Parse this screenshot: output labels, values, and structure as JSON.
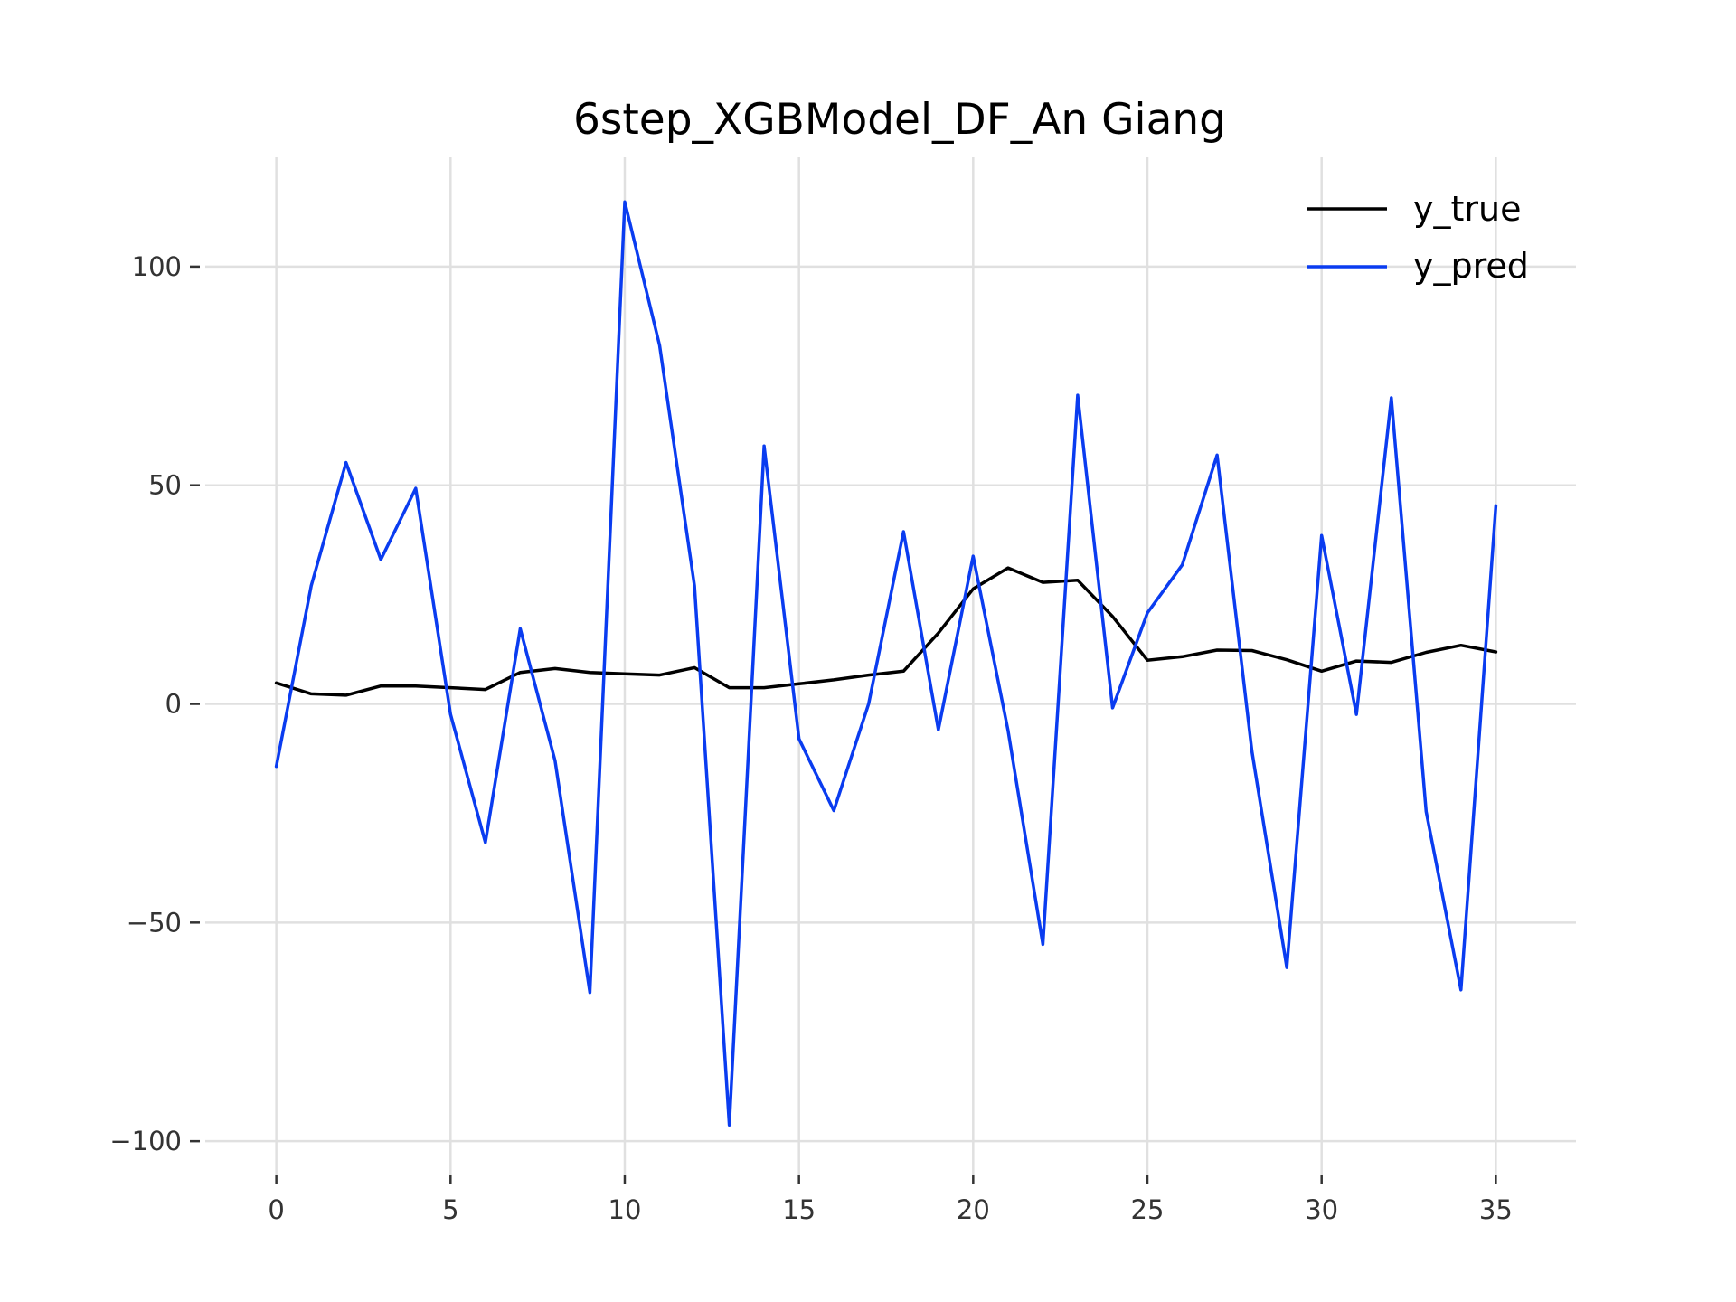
{
  "chart_data": {
    "type": "line",
    "title": "6step_XGBModel_DF_An Giang",
    "xlabel": "",
    "ylabel": "",
    "xlim": [
      -2.3,
      37.3
    ],
    "ylim": [
      -107,
      125
    ],
    "grid": true,
    "legend_position": "top-right",
    "x_ticks": [
      0,
      5,
      10,
      15,
      20,
      25,
      30,
      35
    ],
    "y_ticks": [
      -100,
      -50,
      0,
      50,
      100
    ],
    "x_tick_labels": [
      "0",
      "5",
      "10",
      "15",
      "20",
      "25",
      "30",
      "35"
    ],
    "y_tick_labels": [
      "−100",
      "−50",
      "0",
      "50",
      "100"
    ],
    "x": [
      0,
      1,
      2,
      3,
      4,
      5,
      6,
      7,
      8,
      9,
      10,
      11,
      12,
      13,
      14,
      15,
      16,
      17,
      18,
      19,
      20,
      21,
      22,
      23,
      24,
      25,
      26,
      27,
      28,
      29,
      30,
      31,
      32,
      33,
      34,
      35
    ],
    "series": [
      {
        "name": "y_true",
        "color": "#000000",
        "values": [
          4.8,
          2.3,
          2.0,
          4.1,
          4.1,
          3.7,
          3.3,
          7.2,
          8.1,
          7.2,
          6.9,
          6.6,
          8.3,
          3.7,
          3.7,
          4.6,
          5.5,
          6.6,
          7.5,
          16.2,
          26.3,
          31.1,
          27.8,
          28.3,
          20.0,
          10.0,
          10.8,
          12.3,
          12.2,
          10.1,
          7.5,
          9.8,
          9.5,
          11.8,
          13.4,
          11.9
        ]
      },
      {
        "name": "y_pred",
        "color": "#0a3cf0",
        "values": [
          -14.3,
          27.0,
          55.2,
          33.0,
          49.3,
          -2.4,
          -31.7,
          17.2,
          -13.0,
          -66.0,
          114.8,
          82.0,
          27.0,
          -96.3,
          59.0,
          -8.0,
          -24.4,
          0.0,
          39.4,
          -5.9,
          33.8,
          -6.1,
          -55.0,
          70.6,
          -0.9,
          20.8,
          31.8,
          56.9,
          -10.8,
          -60.3,
          38.5,
          -2.4,
          70.0,
          -24.6,
          -65.4,
          45.3
        ]
      }
    ]
  }
}
